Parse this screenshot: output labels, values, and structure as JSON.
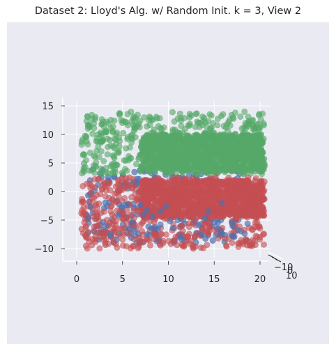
{
  "chart_data": {
    "type": "scatter",
    "title": "Dataset 2: Lloyd's Alg. w/ Random Init. k = 3, View 2",
    "xlabel": "",
    "ylabel": "",
    "zlabel": "",
    "projection": "3d",
    "xlim": [
      0,
      20
    ],
    "zlim": [
      -10,
      15
    ],
    "x_ticks": [
      "0",
      "5",
      "10",
      "15",
      "20"
    ],
    "z_ticks": [
      "-10",
      "-5",
      "0",
      "5",
      "10",
      "15"
    ],
    "y_ticks": [
      "-10",
      "0",
      "10"
    ],
    "background": "#eaeaf2",
    "series": [
      {
        "color": "#55a868",
        "x_range": [
          0.5,
          20.5
        ],
        "z_range": [
          3,
          14
        ],
        "dense_x_from": 7,
        "dense_z_range": [
          3.5,
          10
        ]
      },
      {
        "color": "#c44e52",
        "x_range": [
          0.5,
          20.5
        ],
        "z_range": [
          -10,
          2.5
        ],
        "dense_x_from": 7,
        "dense_z_range": [
          -4.5,
          2
        ]
      },
      {
        "color": "#4c72b0",
        "x_range": [
          1,
          19
        ],
        "z_range": [
          -9,
          4
        ]
      }
    ]
  }
}
